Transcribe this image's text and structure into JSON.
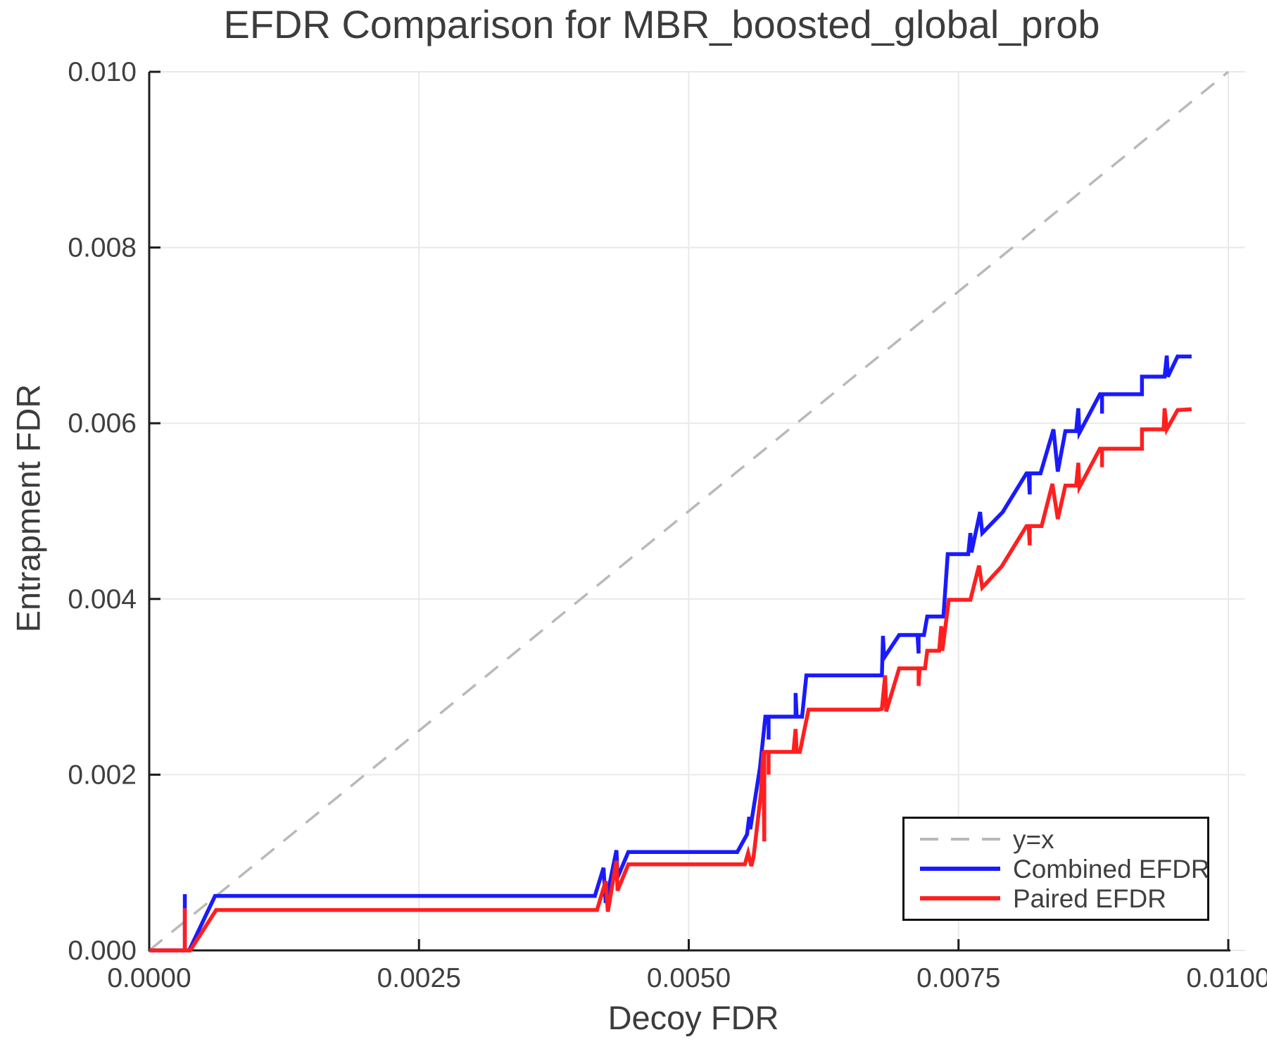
{
  "title": "EFDR Comparison for MBR_boosted_global_prob",
  "legend": {
    "items": [
      {
        "label": "y=x",
        "color": "#b9b9b9",
        "dash": true
      },
      {
        "label": "Combined EFDR",
        "color": "#1a1aff",
        "dash": false
      },
      {
        "label": "Paired EFDR",
        "color": "#ff1f1f",
        "dash": false
      }
    ]
  },
  "colors": {
    "text": "#3c3c3c",
    "tick_text": "#3f3f3f",
    "spine": "#1c1c1c",
    "grid": "#e9e9e9",
    "reference": "#b9b9b9",
    "combined": "#1a1aff",
    "paired": "#ff1f1f",
    "background": "#ffffff"
  },
  "chart_data": {
    "type": "line",
    "title": "EFDR Comparison for MBR_boosted_global_prob",
    "xlabel": "Decoy FDR",
    "ylabel": "Entrapment FDR",
    "xlim": [
      0.0,
      0.01
    ],
    "ylim": [
      0.0,
      0.01
    ],
    "grid": true,
    "legend_position": "lower right",
    "x_ticks": [
      0.0,
      0.0025,
      0.005,
      0.0075,
      0.01
    ],
    "x_tick_labels": [
      "0.0000",
      "0.0025",
      "0.0050",
      "0.0075",
      "0.0100"
    ],
    "y_ticks": [
      0.0,
      0.002,
      0.004,
      0.006,
      0.008,
      0.01
    ],
    "y_tick_labels": [
      "0.000",
      "0.002",
      "0.004",
      "0.006",
      "0.008",
      "0.010"
    ],
    "reference_line": {
      "name": "y=x",
      "x": [
        0.0,
        0.01
      ],
      "y": [
        0.0,
        0.01
      ],
      "style": "dashed",
      "color": "#b9b9b9"
    },
    "series": [
      {
        "name": "Combined EFDR",
        "color": "#1a1aff",
        "points": [
          [
            0.0,
            0.0
          ],
          [
            0.00033,
            0.0
          ],
          [
            0.00033,
            0.00064
          ],
          [
            0.00033,
            0.0
          ],
          [
            0.00037,
            0.0
          ],
          [
            0.00061,
            0.00062
          ],
          [
            0.00413,
            0.00062
          ],
          [
            0.00421,
            0.00094
          ],
          [
            0.00423,
            0.00054
          ],
          [
            0.00433,
            0.00114
          ],
          [
            0.00434,
            0.00083
          ],
          [
            0.00444,
            0.00112
          ],
          [
            0.00545,
            0.00112
          ],
          [
            0.00554,
            0.00132
          ],
          [
            0.00556,
            0.00152
          ],
          [
            0.00557,
            0.00138
          ],
          [
            0.00566,
            0.00208
          ],
          [
            0.00571,
            0.00266
          ],
          [
            0.00574,
            0.00266
          ],
          [
            0.00574,
            0.0024
          ],
          [
            0.00574,
            0.00266
          ],
          [
            0.00599,
            0.00266
          ],
          [
            0.00599,
            0.00293
          ],
          [
            0.006,
            0.00266
          ],
          [
            0.00605,
            0.00266
          ],
          [
            0.00609,
            0.00313
          ],
          [
            0.00679,
            0.00313
          ],
          [
            0.0068,
            0.00358
          ],
          [
            0.00681,
            0.00333
          ],
          [
            0.00695,
            0.00359
          ],
          [
            0.00712,
            0.00359
          ],
          [
            0.00713,
            0.00338
          ],
          [
            0.00713,
            0.00359
          ],
          [
            0.00718,
            0.00359
          ],
          [
            0.00721,
            0.0038
          ],
          [
            0.00736,
            0.0038
          ],
          [
            0.0074,
            0.00451
          ],
          [
            0.00759,
            0.00451
          ],
          [
            0.00761,
            0.00475
          ],
          [
            0.00762,
            0.00453
          ],
          [
            0.0077,
            0.00499
          ],
          [
            0.00772,
            0.00475
          ],
          [
            0.00791,
            0.00499
          ],
          [
            0.00813,
            0.00543
          ],
          [
            0.00815,
            0.00543
          ],
          [
            0.00816,
            0.00519
          ],
          [
            0.00816,
            0.00543
          ],
          [
            0.00826,
            0.00543
          ],
          [
            0.00838,
            0.00593
          ],
          [
            0.00842,
            0.00545
          ],
          [
            0.00849,
            0.00591
          ],
          [
            0.00859,
            0.00591
          ],
          [
            0.00861,
            0.00617
          ],
          [
            0.00862,
            0.00589
          ],
          [
            0.00881,
            0.00633
          ],
          [
            0.00883,
            0.00633
          ],
          [
            0.00883,
            0.00611
          ],
          [
            0.00883,
            0.00633
          ],
          [
            0.0092,
            0.00633
          ],
          [
            0.0092,
            0.00653
          ],
          [
            0.00941,
            0.00653
          ],
          [
            0.00943,
            0.00677
          ],
          [
            0.00944,
            0.00653
          ],
          [
            0.00953,
            0.00676
          ],
          [
            0.00966,
            0.00676
          ]
        ]
      },
      {
        "name": "Paired EFDR",
        "color": "#ff1f1f",
        "points": [
          [
            0.0,
            0.0
          ],
          [
            0.00033,
            0.0
          ],
          [
            0.00033,
            0.00048
          ],
          [
            0.00033,
            0.0
          ],
          [
            0.00038,
            0.0
          ],
          [
            0.00062,
            0.00046
          ],
          [
            0.00415,
            0.00046
          ],
          [
            0.00423,
            0.00079
          ],
          [
            0.00425,
            0.00044
          ],
          [
            0.00433,
            0.00102
          ],
          [
            0.00434,
            0.00068
          ],
          [
            0.00444,
            0.00098
          ],
          [
            0.00552,
            0.00098
          ],
          [
            0.00555,
            0.00111
          ],
          [
            0.00558,
            0.00096
          ],
          [
            0.0056,
            0.00106
          ],
          [
            0.00567,
            0.0018
          ],
          [
            0.00569,
            0.00226
          ],
          [
            0.0057,
            0.00124
          ],
          [
            0.0057,
            0.00226
          ],
          [
            0.00574,
            0.00226
          ],
          [
            0.00574,
            0.002
          ],
          [
            0.00574,
            0.00226
          ],
          [
            0.00597,
            0.00226
          ],
          [
            0.00599,
            0.00252
          ],
          [
            0.006,
            0.00226
          ],
          [
            0.00603,
            0.00226
          ],
          [
            0.00611,
            0.00274
          ],
          [
            0.00676,
            0.00274
          ],
          [
            0.00679,
            0.00275
          ],
          [
            0.00682,
            0.00313
          ],
          [
            0.00683,
            0.00272
          ],
          [
            0.00695,
            0.00321
          ],
          [
            0.00713,
            0.00321
          ],
          [
            0.00713,
            0.00301
          ],
          [
            0.00714,
            0.00321
          ],
          [
            0.00719,
            0.00321
          ],
          [
            0.00721,
            0.00341
          ],
          [
            0.00732,
            0.00341
          ],
          [
            0.00734,
            0.00369
          ],
          [
            0.00735,
            0.00341
          ],
          [
            0.00741,
            0.00399
          ],
          [
            0.00761,
            0.00399
          ],
          [
            0.00769,
            0.00438
          ],
          [
            0.00772,
            0.00413
          ],
          [
            0.0079,
            0.00437
          ],
          [
            0.00813,
            0.00483
          ],
          [
            0.00815,
            0.00483
          ],
          [
            0.00816,
            0.00461
          ],
          [
            0.00816,
            0.00483
          ],
          [
            0.00827,
            0.00483
          ],
          [
            0.00837,
            0.00531
          ],
          [
            0.00842,
            0.00491
          ],
          [
            0.00849,
            0.00529
          ],
          [
            0.00859,
            0.00529
          ],
          [
            0.00861,
            0.00555
          ],
          [
            0.00862,
            0.00527
          ],
          [
            0.00881,
            0.00571
          ],
          [
            0.00883,
            0.00571
          ],
          [
            0.00883,
            0.0055
          ],
          [
            0.00883,
            0.00571
          ],
          [
            0.0092,
            0.00571
          ],
          [
            0.0092,
            0.00593
          ],
          [
            0.0094,
            0.00593
          ],
          [
            0.00941,
            0.00617
          ],
          [
            0.00943,
            0.00593
          ],
          [
            0.00953,
            0.00615
          ],
          [
            0.00966,
            0.00616
          ]
        ]
      }
    ]
  }
}
